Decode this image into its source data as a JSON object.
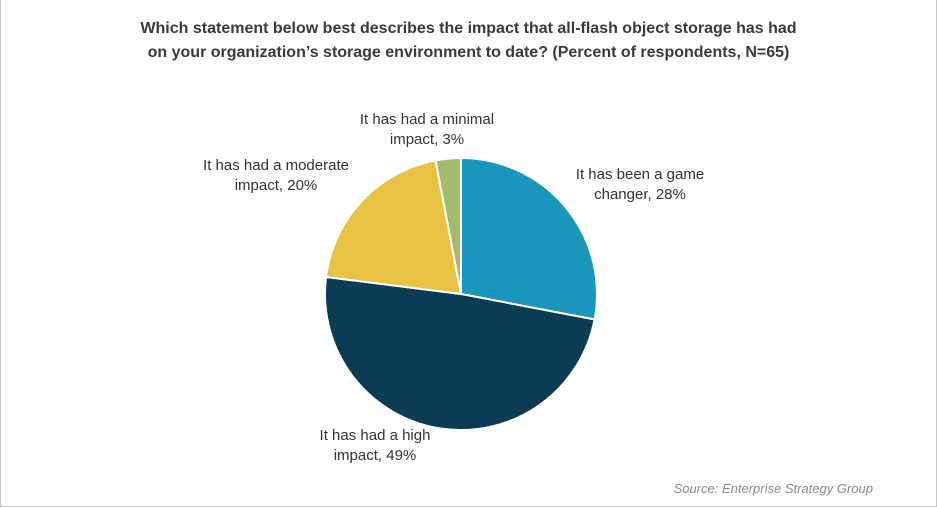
{
  "chart_data": {
    "type": "pie",
    "title_lines": [
      "Which statement below best describes the impact that all-flash object storage has had",
      "on your organization’s storage environment to date? (Percent of respondents, N=65)"
    ],
    "slices": [
      {
        "label_lines": [
          "It has been a game",
          "changer, 28%"
        ],
        "value": 28,
        "color": "#1a96bd"
      },
      {
        "label_lines": [
          "It has had a high",
          "impact, 49%"
        ],
        "value": 49,
        "color": "#0c3b54"
      },
      {
        "label_lines": [
          "It has had a moderate",
          "impact, 20%"
        ],
        "value": 20,
        "color": "#e8c343"
      },
      {
        "label_lines": [
          "It has had a minimal",
          "impact, 3%"
        ],
        "value": 3,
        "color": "#a6ba6e"
      }
    ],
    "legend": "none",
    "source": "Source: Enterprise Strategy Group"
  }
}
